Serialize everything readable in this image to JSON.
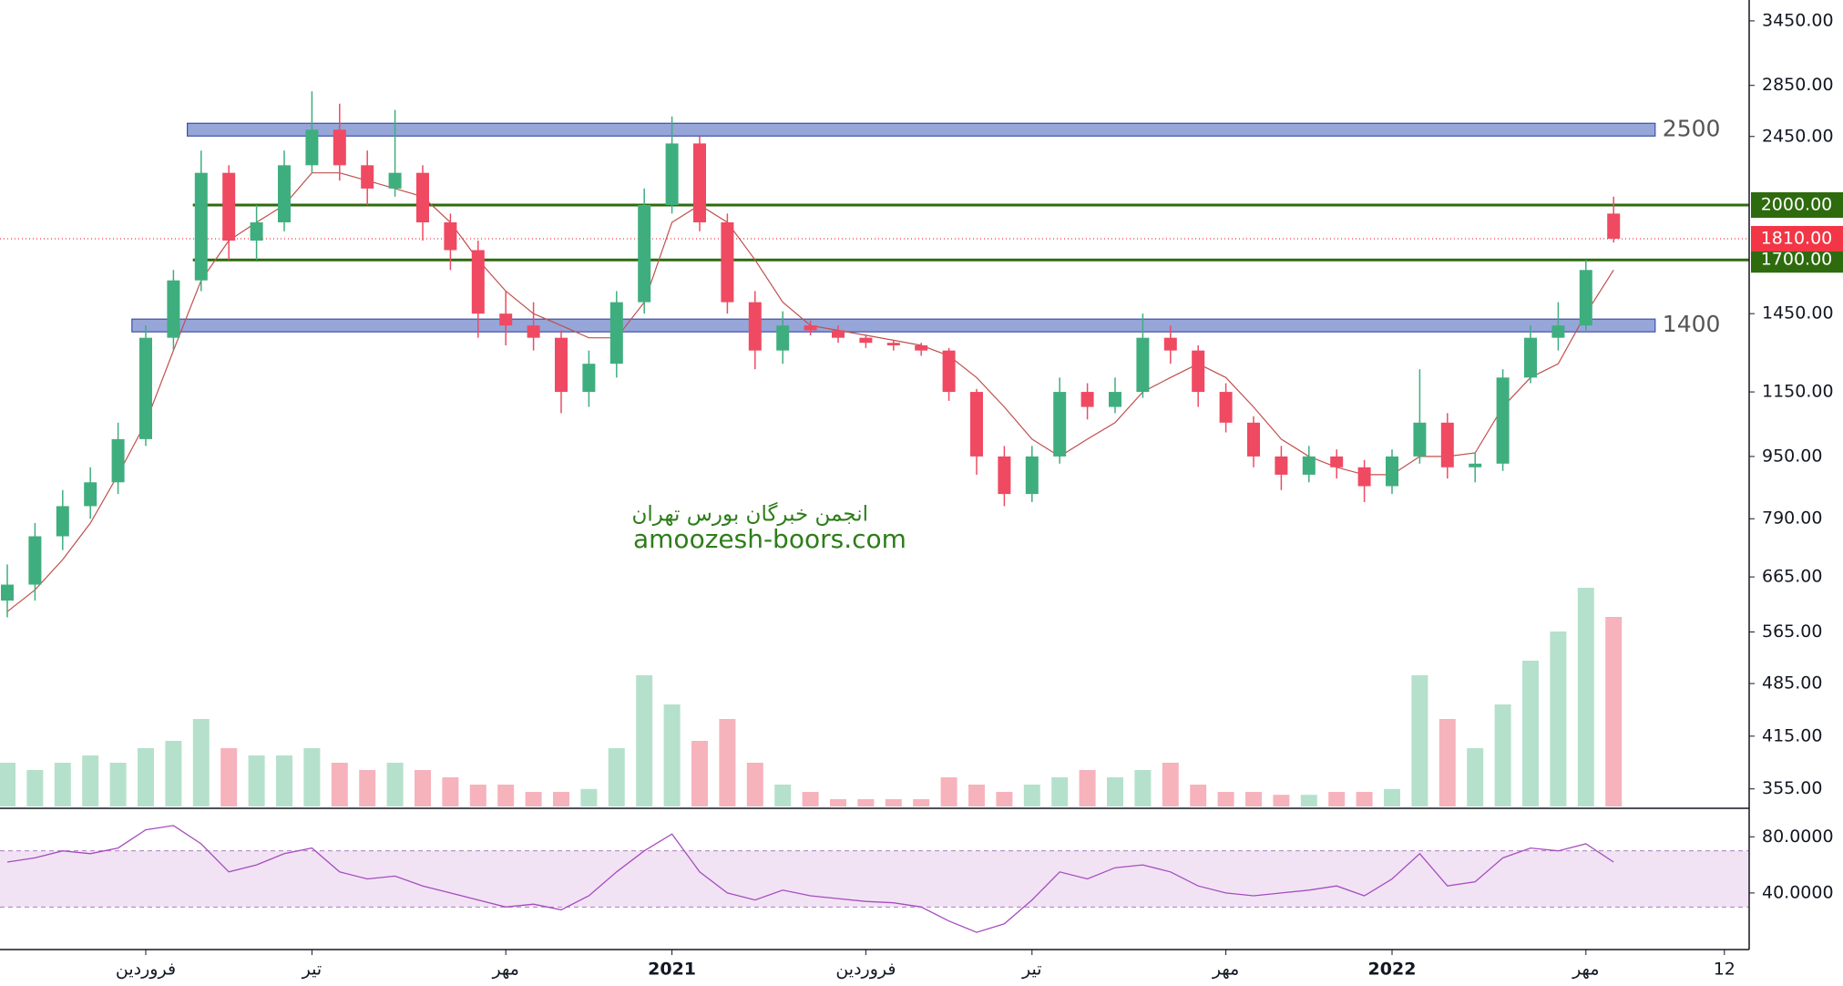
{
  "chart_data": {
    "type": "candlestick",
    "log_scale": true,
    "up_color": "#3fae7e",
    "down_color": "#ef4a62",
    "categories": [
      null,
      null,
      null,
      null,
      null,
      "فروردین",
      null,
      null,
      null,
      null,
      null,
      "تیر",
      null,
      null,
      null,
      null,
      null,
      null,
      "مهر",
      null,
      null,
      null,
      null,
      null,
      "2021",
      null,
      null,
      null,
      null,
      null,
      null,
      "فروردین",
      null,
      null,
      null,
      null,
      null,
      "تیر",
      null,
      null,
      null,
      null,
      null,
      null,
      "مهر",
      null,
      null,
      null,
      null,
      null,
      "2022",
      null,
      null,
      null,
      null,
      null,
      null,
      "مهر",
      null,
      null,
      null,
      null,
      "12"
    ],
    "open": [
      620,
      650,
      750,
      820,
      880,
      1000,
      1350,
      1600,
      2200,
      1800,
      1900,
      2250,
      2500,
      2250,
      2100,
      2200,
      1900,
      1750,
      1450,
      1400,
      1350,
      1150,
      1250,
      1500,
      2000,
      2400,
      1900,
      1500,
      1300,
      1400,
      1380,
      1350,
      1330,
      1320,
      1300,
      1150,
      950,
      850,
      950,
      1150,
      1100,
      1150,
      1350,
      1300,
      1150,
      1050,
      950,
      900,
      950,
      920,
      870,
      950,
      1050,
      920,
      930,
      1200,
      1350,
      1400,
      1950,
      null,
      null,
      null,
      null
    ],
    "high": [
      690,
      780,
      860,
      920,
      1050,
      1400,
      1650,
      2350,
      2250,
      2000,
      2350,
      2800,
      2700,
      2350,
      2650,
      2250,
      1950,
      1800,
      1550,
      1500,
      1380,
      1300,
      1550,
      2100,
      2600,
      2450,
      1950,
      1550,
      1460,
      1420,
      1400,
      1360,
      1340,
      1330,
      1310,
      1160,
      980,
      980,
      1200,
      1180,
      1200,
      1450,
      1400,
      1320,
      1180,
      1070,
      980,
      980,
      970,
      940,
      970,
      1230,
      1080,
      960,
      1230,
      1400,
      1500,
      1700,
      2050,
      null,
      null,
      null,
      null
    ],
    "low": [
      590,
      620,
      720,
      790,
      850,
      980,
      1300,
      1550,
      1700,
      1700,
      1850,
      2200,
      2150,
      2000,
      2050,
      1800,
      1650,
      1350,
      1320,
      1300,
      1080,
      1100,
      1200,
      1450,
      1950,
      1850,
      1450,
      1230,
      1250,
      1360,
      1330,
      1310,
      1300,
      1280,
      1120,
      900,
      820,
      830,
      930,
      1060,
      1080,
      1130,
      1250,
      1100,
      1020,
      920,
      860,
      880,
      890,
      830,
      850,
      930,
      890,
      880,
      910,
      1180,
      1300,
      1380,
      1790,
      null,
      null,
      null,
      null
    ],
    "close": [
      650,
      750,
      820,
      880,
      1000,
      1350,
      1600,
      2200,
      1800,
      1900,
      2250,
      2500,
      2250,
      2100,
      2200,
      1900,
      1750,
      1450,
      1400,
      1350,
      1150,
      1250,
      1500,
      2000,
      2400,
      1900,
      1500,
      1300,
      1400,
      1380,
      1350,
      1330,
      1320,
      1300,
      1150,
      950,
      850,
      950,
      1150,
      1100,
      1150,
      1350,
      1300,
      1150,
      1050,
      950,
      900,
      950,
      920,
      870,
      950,
      1050,
      920,
      930,
      1200,
      1350,
      1400,
      1650,
      1810,
      null,
      null,
      null,
      null
    ],
    "volume": {
      "values": [
        30,
        25,
        30,
        35,
        30,
        40,
        45,
        60,
        40,
        35,
        35,
        40,
        30,
        25,
        30,
        25,
        20,
        15,
        15,
        10,
        10,
        12,
        40,
        90,
        70,
        45,
        60,
        30,
        15,
        10,
        5,
        5,
        5,
        5,
        20,
        15,
        10,
        15,
        20,
        25,
        20,
        25,
        30,
        15,
        10,
        10,
        8,
        8,
        10,
        10,
        12,
        90,
        60,
        40,
        70,
        100,
        120,
        150,
        130,
        null,
        null,
        null,
        null
      ],
      "up_color": "#a8dcc3",
      "down_color": "#f5a6b0",
      "avg_color": "#7cc4f2"
    },
    "kijun": {
      "values": [
        600,
        640,
        700,
        780,
        900,
        1050,
        1300,
        1600,
        1800,
        1900,
        2000,
        2200,
        2200,
        2150,
        2100,
        2050,
        1900,
        1700,
        1550,
        1450,
        1400,
        1350,
        1350,
        1500,
        1900,
        2000,
        1900,
        1700,
        1500,
        1400,
        1380,
        1360,
        1340,
        1320,
        1280,
        1200,
        1100,
        1000,
        950,
        1000,
        1050,
        1150,
        1200,
        1250,
        1200,
        1100,
        1000,
        950,
        920,
        900,
        900,
        950,
        950,
        960,
        1100,
        1200,
        1250,
        1450,
        1650,
        null,
        null,
        null,
        null
      ],
      "color": "#c0504d"
    },
    "ylim": [
      337,
      3670
    ],
    "yticks": [
      {
        "value": 3450,
        "label": "3450.00"
      },
      {
        "value": 2850,
        "label": "2850.00"
      },
      {
        "value": 2450,
        "label": "2450.00"
      },
      {
        "value": 1450,
        "label": "1450.00"
      },
      {
        "value": 1150,
        "label": "1150.00"
      },
      {
        "value": 950,
        "label": "950.00"
      },
      {
        "value": 790,
        "label": "790.00"
      },
      {
        "value": 665,
        "label": "665.00"
      },
      {
        "value": 565,
        "label": "565.00"
      },
      {
        "value": 485,
        "label": "485.00"
      },
      {
        "value": 415,
        "label": "415.00"
      },
      {
        "value": 355,
        "label": "355.00"
      }
    ],
    "bands": [
      {
        "value": 2500,
        "label": "2500",
        "color": "#8496d2"
      },
      {
        "value": 1400,
        "label": "1400",
        "color": "#8496d2"
      }
    ],
    "levels": [
      {
        "value": 2000,
        "label": "2000.00",
        "color": "#2e6b0e"
      },
      {
        "value": 1700,
        "label": "1700.00",
        "color": "#2e6b0e"
      }
    ],
    "last_price": {
      "value": 1810,
      "label": "1810.00",
      "color": "#f23645"
    },
    "rsi": {
      "values": [
        62,
        65,
        70,
        68,
        72,
        85,
        88,
        75,
        55,
        60,
        68,
        72,
        55,
        50,
        52,
        45,
        40,
        35,
        30,
        32,
        28,
        38,
        55,
        70,
        82,
        55,
        40,
        35,
        42,
        38,
        36,
        34,
        33,
        30,
        20,
        12,
        18,
        35,
        55,
        50,
        58,
        60,
        55,
        45,
        40,
        38,
        40,
        42,
        45,
        38,
        50,
        68,
        45,
        48,
        65,
        72,
        70,
        75,
        62,
        null,
        null,
        null,
        null
      ],
      "ylim": [
        1,
        99
      ],
      "band": [
        30,
        70
      ],
      "color": "#a64dbf",
      "band_color": "#f1e3f4",
      "yticks": [
        {
          "value": 80,
          "label": "80.0000"
        },
        {
          "value": 40,
          "label": "40.0000"
        }
      ]
    }
  },
  "watermark": {
    "title": "انجمن خبرگان بورس تهران",
    "url": "amoozesh-boors.com"
  }
}
